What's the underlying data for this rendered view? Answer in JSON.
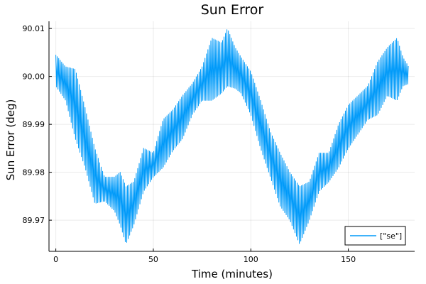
{
  "chart_data": {
    "type": "line",
    "title": "Sun Error",
    "xlabel": "Time (minutes)",
    "ylabel": "Sun Error (deg)",
    "xlim": [
      -3.5,
      184
    ],
    "ylim": [
      89.9635,
      90.0115
    ],
    "x_ticks": [
      0,
      50,
      100,
      150
    ],
    "x_tick_labels": [
      "0",
      "50",
      "100",
      "150"
    ],
    "y_ticks": [
      89.97,
      89.98,
      89.99,
      90.0,
      90.01
    ],
    "y_tick_labels": [
      "89.97",
      "89.98",
      "89.99",
      "90.00",
      "90.01"
    ],
    "grid": true,
    "legend_position": "bottom-right",
    "series": [
      {
        "name": "[\"se\"]",
        "color": "#009af9",
        "oscillation_period_minutes": 0.75,
        "envelope": [
          {
            "x": 0,
            "min": 89.998,
            "max": 90.0045
          },
          {
            "x": 5,
            "min": 89.995,
            "max": 90.002
          },
          {
            "x": 10,
            "min": 89.987,
            "max": 90.0015
          },
          {
            "x": 15,
            "min": 89.981,
            "max": 89.9935
          },
          {
            "x": 20,
            "min": 89.9735,
            "max": 89.985
          },
          {
            "x": 25,
            "min": 89.974,
            "max": 89.979
          },
          {
            "x": 30,
            "min": 89.972,
            "max": 89.979
          },
          {
            "x": 33,
            "min": 89.969,
            "max": 89.98
          },
          {
            "x": 36,
            "min": 89.965,
            "max": 89.977
          },
          {
            "x": 40,
            "min": 89.969,
            "max": 89.978
          },
          {
            "x": 45,
            "min": 89.976,
            "max": 89.985
          },
          {
            "x": 50,
            "min": 89.979,
            "max": 89.984
          },
          {
            "x": 55,
            "min": 89.981,
            "max": 89.991
          },
          {
            "x": 60,
            "min": 89.9845,
            "max": 89.993
          },
          {
            "x": 65,
            "min": 89.987,
            "max": 89.996
          },
          {
            "x": 70,
            "min": 89.992,
            "max": 89.9985
          },
          {
            "x": 75,
            "min": 89.995,
            "max": 90.002
          },
          {
            "x": 80,
            "min": 89.995,
            "max": 90.008
          },
          {
            "x": 85,
            "min": 89.9965,
            "max": 90.007
          },
          {
            "x": 88,
            "min": 89.998,
            "max": 90.01
          },
          {
            "x": 92,
            "min": 89.9975,
            "max": 90.006
          },
          {
            "x": 95,
            "min": 89.9965,
            "max": 90.004
          },
          {
            "x": 100,
            "min": 89.992,
            "max": 90.001
          },
          {
            "x": 105,
            "min": 89.985,
            "max": 89.995
          },
          {
            "x": 110,
            "min": 89.979,
            "max": 89.9885
          },
          {
            "x": 115,
            "min": 89.973,
            "max": 89.984
          },
          {
            "x": 120,
            "min": 89.97,
            "max": 89.98
          },
          {
            "x": 125,
            "min": 89.965,
            "max": 89.977
          },
          {
            "x": 130,
            "min": 89.97,
            "max": 89.978
          },
          {
            "x": 135,
            "min": 89.976,
            "max": 89.984
          },
          {
            "x": 140,
            "min": 89.978,
            "max": 89.984
          },
          {
            "x": 145,
            "min": 89.981,
            "max": 89.99
          },
          {
            "x": 150,
            "min": 89.985,
            "max": 89.994
          },
          {
            "x": 155,
            "min": 89.988,
            "max": 89.996
          },
          {
            "x": 160,
            "min": 89.991,
            "max": 89.998
          },
          {
            "x": 165,
            "min": 89.992,
            "max": 90.003
          },
          {
            "x": 170,
            "min": 89.996,
            "max": 90.006
          },
          {
            "x": 175,
            "min": 89.995,
            "max": 90.008
          },
          {
            "x": 178,
            "min": 89.998,
            "max": 90.004
          },
          {
            "x": 181,
            "min": 89.9985,
            "max": 90.002
          }
        ]
      }
    ]
  }
}
